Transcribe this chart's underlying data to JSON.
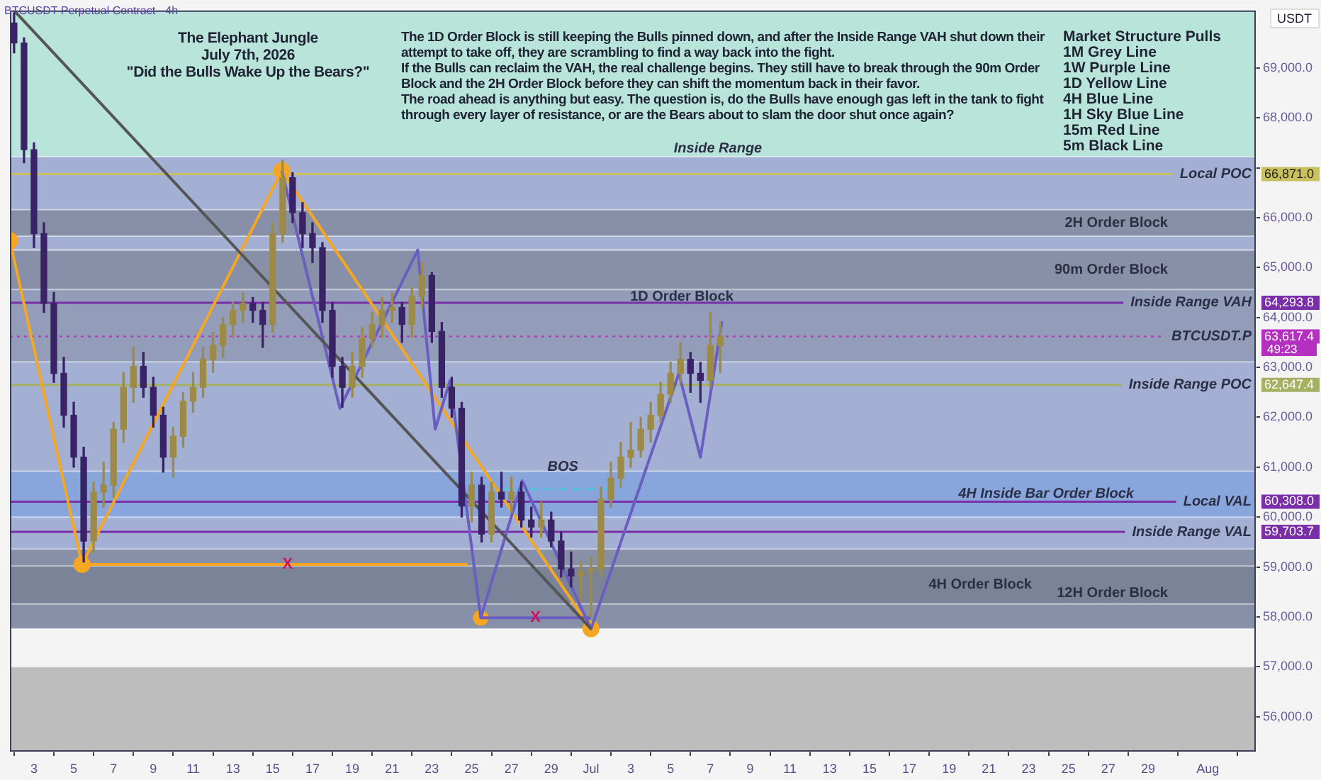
{
  "chart_data": {
    "type": "candlestick",
    "title": "The Elephant Jungle",
    "subtitle": "July 7th, 2026",
    "annotations": [
      "BTCUSDT Perpetual Contract · 4h",
      "\"Did the Bulls Wake Up the Bears?\"",
      "The 1D Order Block is still keeping the Bulls pinned down, and after the Inside Range VAH shut down their attempt to take off, they are scrambling to find a way back into the fight.",
      "If the Bulls can reclaim the VAH, the real challenge begins. They still have to break through the 90m Order Block and the 2H Order Block before they can shift the momentum back in their favor.",
      "The road ahead is anything but easy. The question is, do the Bulls have enough gas left in the tank to fight through every layer of resistance, or are the Bears about to slam the door shut once again?",
      "Market Structure Pulls",
      "1M Grey Line",
      "1W Purple Line",
      "1D Yellow Line",
      "4H Blue Line",
      "1H Sky Blue Line",
      "15m Red Line",
      "5m Black Line",
      "USDT",
      "49:23",
      {
        "text": "BOS",
        "x": "2026-06-29T14:00",
        "y": 61010
      },
      {
        "text": "X",
        "x": "2026-06-15T18:00",
        "y": 59050
      },
      {
        "text": "X",
        "x": "2026-06-28T05:00",
        "y": 57980
      },
      "66,871.0",
      "64,293.8",
      "63,617.4",
      "62,647.4",
      "60,308.0",
      "59,703.7"
    ],
    "x": [
      "2026-06-02T00:00",
      "2026-06-02T12:00",
      "2026-06-03T00:00",
      "2026-06-03T12:00",
      "2026-06-04T00:00",
      "2026-06-04T12:00",
      "2026-06-05T00:00",
      "2026-06-05T12:00",
      "2026-06-06T00:00",
      "2026-06-06T12:00",
      "2026-06-07T00:00",
      "2026-06-07T12:00",
      "2026-06-08T00:00",
      "2026-06-08T12:00",
      "2026-06-09T00:00",
      "2026-06-09T12:00",
      "2026-06-10T00:00",
      "2026-06-10T12:00",
      "2026-06-11T00:00",
      "2026-06-11T12:00",
      "2026-06-12T00:00",
      "2026-06-12T12:00",
      "2026-06-13T00:00",
      "2026-06-13T12:00",
      "2026-06-14T00:00",
      "2026-06-14T12:00",
      "2026-06-15T00:00",
      "2026-06-15T12:00",
      "2026-06-16T00:00",
      "2026-06-16T12:00",
      "2026-06-17T00:00",
      "2026-06-17T12:00",
      "2026-06-18T00:00",
      "2026-06-18T12:00",
      "2026-06-19T00:00",
      "2026-06-19T12:00",
      "2026-06-20T00:00",
      "2026-06-20T12:00",
      "2026-06-21T00:00",
      "2026-06-21T12:00",
      "2026-06-22T00:00",
      "2026-06-22T12:00",
      "2026-06-23T00:00",
      "2026-06-23T12:00",
      "2026-06-24T00:00",
      "2026-06-24T12:00",
      "2026-06-25T00:00",
      "2026-06-25T12:00",
      "2026-06-26T00:00",
      "2026-06-26T12:00",
      "2026-06-27T00:00",
      "2026-06-27T12:00",
      "2026-06-28T00:00",
      "2026-06-28T12:00",
      "2026-06-29T00:00",
      "2026-06-29T12:00",
      "2026-06-30T00:00",
      "2026-06-30T12:00",
      "2026-07-01T00:00",
      "2026-07-01T12:00",
      "2026-07-02T00:00",
      "2026-07-02T12:00",
      "2026-07-03T00:00",
      "2026-07-03T12:00",
      "2026-07-04T00:00",
      "2026-07-04T12:00",
      "2026-07-05T00:00",
      "2026-07-05T12:00",
      "2026-07-06T00:00",
      "2026-07-06T12:00",
      "2026-07-07T00:00",
      "2026-07-07T12:00"
    ],
    "ohlc": [
      [
        69900,
        70100,
        69300,
        69500
      ],
      [
        69500,
        69600,
        67100,
        67360
      ],
      [
        67360,
        67500,
        65400,
        65680
      ],
      [
        65680,
        65900,
        64100,
        64280
      ],
      [
        64280,
        64500,
        62700,
        62880
      ],
      [
        62880,
        63200,
        61800,
        62040
      ],
      [
        62040,
        62300,
        61000,
        61200
      ],
      [
        61200,
        61400,
        59100,
        59520
      ],
      [
        59520,
        60700,
        59300,
        60500
      ],
      [
        60500,
        61100,
        60200,
        60640
      ],
      [
        60640,
        61900,
        60400,
        61760
      ],
      [
        61760,
        62900,
        61500,
        62600
      ],
      [
        62600,
        63400,
        62300,
        63020
      ],
      [
        63020,
        63300,
        62400,
        62600
      ],
      [
        62600,
        62800,
        61800,
        62040
      ],
      [
        62040,
        62200,
        60900,
        61200
      ],
      [
        61200,
        61800,
        60800,
        61620
      ],
      [
        61620,
        62500,
        61400,
        62320
      ],
      [
        62320,
        62900,
        62100,
        62600
      ],
      [
        62600,
        63400,
        62400,
        63160
      ],
      [
        63160,
        63700,
        62900,
        63440
      ],
      [
        63440,
        64000,
        63200,
        63860
      ],
      [
        63860,
        64300,
        63600,
        64140
      ],
      [
        64140,
        64500,
        63900,
        64280
      ],
      [
        64280,
        64400,
        63900,
        64140
      ],
      [
        64140,
        64300,
        63400,
        63860
      ],
      [
        63860,
        65900,
        63700,
        65680
      ],
      [
        65680,
        67150,
        65500,
        66800
      ],
      [
        66800,
        66900,
        65900,
        66100
      ],
      [
        66100,
        66300,
        65400,
        65680
      ],
      [
        65680,
        65900,
        65100,
        65400
      ],
      [
        65400,
        65500,
        63900,
        64140
      ],
      [
        64140,
        64300,
        62800,
        63020
      ],
      [
        63020,
        63200,
        62200,
        62600
      ],
      [
        62600,
        63300,
        62400,
        63020
      ],
      [
        63020,
        63800,
        62800,
        63580
      ],
      [
        63580,
        64100,
        63400,
        63860
      ],
      [
        63860,
        64400,
        63600,
        64140
      ],
      [
        64140,
        64500,
        63900,
        64200
      ],
      [
        64200,
        64300,
        63500,
        63860
      ],
      [
        63860,
        64600,
        63600,
        64420
      ],
      [
        64420,
        65100,
        64200,
        64840
      ],
      [
        64840,
        64900,
        63500,
        63720
      ],
      [
        63720,
        63900,
        62400,
        62600
      ],
      [
        62600,
        62800,
        62000,
        62180
      ],
      [
        62180,
        62300,
        60000,
        60220
      ],
      [
        60220,
        60900,
        59900,
        60640
      ],
      [
        60640,
        60800,
        59500,
        59660
      ],
      [
        59660,
        60700,
        59500,
        60500
      ],
      [
        60500,
        60900,
        60200,
        60360
      ],
      [
        60360,
        60800,
        60100,
        60500
      ],
      [
        60500,
        60700,
        59800,
        59940
      ],
      [
        59940,
        60200,
        59600,
        59800
      ],
      [
        59800,
        60300,
        59600,
        59940
      ],
      [
        59940,
        60100,
        59400,
        59520
      ],
      [
        59520,
        59700,
        58800,
        58960
      ],
      [
        58960,
        59300,
        58600,
        58820
      ],
      [
        58820,
        59100,
        58300,
        58900
      ],
      [
        58900,
        59200,
        58000,
        58960
      ],
      [
        58960,
        60600,
        58800,
        60360
      ],
      [
        60360,
        61100,
        60200,
        60780
      ],
      [
        60780,
        61500,
        60600,
        61200
      ],
      [
        61200,
        61900,
        61000,
        61340
      ],
      [
        61340,
        62000,
        61200,
        61760
      ],
      [
        61760,
        62300,
        61500,
        62040
      ],
      [
        62040,
        62700,
        61900,
        62460
      ],
      [
        62460,
        63100,
        62300,
        62880
      ],
      [
        62880,
        63500,
        62700,
        63160
      ],
      [
        63160,
        63300,
        62500,
        62880
      ],
      [
        62880,
        63100,
        62300,
        62740
      ],
      [
        62740,
        64100,
        62600,
        63440
      ],
      [
        63440,
        63900,
        62900,
        63617.4
      ]
    ],
    "colors": [
      "#3a2266",
      "#3a2266",
      "#3a2266",
      "#3a2266",
      "#3a2266",
      "#3a2266",
      "#3a2266",
      "#3a2266",
      "#9c8a48",
      "#9c8a48",
      "#9c8a48",
      "#9c8a48",
      "#9c8a48",
      "#3a2266",
      "#3a2266",
      "#3a2266",
      "#9c8a48",
      "#9c8a48",
      "#9c8a48",
      "#9c8a48",
      "#9c8a48",
      "#9c8a48",
      "#9c8a48",
      "#9c8a48",
      "#3a2266",
      "#3a2266",
      "#9c8a48",
      "#9c8a48",
      "#3a2266",
      "#3a2266",
      "#3a2266",
      "#3a2266",
      "#3a2266",
      "#3a2266",
      "#9c8a48",
      "#9c8a48",
      "#9c8a48",
      "#9c8a48",
      "#9c8a48",
      "#3a2266",
      "#9c8a48",
      "#9c8a48",
      "#3a2266",
      "#3a2266",
      "#3a2266",
      "#3a2266",
      "#9c8a48",
      "#3a2266",
      "#9c8a48",
      "#3a2266",
      "#9c8a48",
      "#3a2266",
      "#3a2266",
      "#9c8a48",
      "#3a2266",
      "#3a2266",
      "#3a2266",
      "#9c8a48",
      "#9c8a48",
      "#9c8a48",
      "#9c8a48",
      "#9c8a48",
      "#9c8a48",
      "#9c8a48",
      "#9c8a48",
      "#9c8a48",
      "#9c8a48",
      "#9c8a48",
      "#3a2266",
      "#3a2266",
      "#9c8a48",
      "#9c8a48"
    ],
    "series": [
      {
        "type": "line",
        "color": "#555555",
        "x": [
          "2026-06-02T00:00",
          "2026-07-01T00:00"
        ],
        "values": [
          70150,
          57760
        ]
      },
      {
        "type": "line",
        "color": "#f5a623",
        "x": [
          "2026-06-05T10:00",
          "2026-06-24T19:00"
        ],
        "values": [
          59050,
          59050
        ]
      },
      {
        "type": "line",
        "color": "#6a5fc1",
        "x": [
          "2026-06-15T11:00",
          "2026-06-18T09:00",
          "2026-06-22T07:00",
          "2026-06-23T04:00",
          "2026-06-23T22:00",
          "2026-06-25T11:00",
          "2026-06-27T13:00",
          "2026-07-01T00:00",
          "2026-07-05T10:00",
          "2026-07-06T12:00",
          "2026-07-07T14:00"
        ],
        "values": [
          66940,
          62180,
          65350,
          61760,
          62740,
          57980,
          60730,
          57760,
          62880,
          61200,
          63920
        ]
      },
      {
        "type": "line",
        "color": "#6a5fc1",
        "x": [
          "2026-06-25T11:00",
          "2026-07-01T00:00"
        ],
        "values": [
          57980,
          57980
        ]
      },
      {
        "type": "line",
        "color": "#4fc3d9",
        "line_style": "dashed",
        "x": [
          "2026-06-26T12:00",
          "2026-07-01T20:00"
        ],
        "values": [
          60560,
          60560
        ]
      },
      {
        "type": "line",
        "color": "#f5a623",
        "marker": "circle",
        "x": [
          "2026-06-01T19:00",
          "2026-06-05T10:00",
          "2026-06-15T11:00",
          "2026-07-01T00:00"
        ],
        "values": [
          65540,
          59050,
          66940,
          57760
        ]
      },
      {
        "type": "scatter",
        "color": "#f5a623",
        "marker": "circle",
        "x": [
          "2026-06-25T11:00"
        ],
        "values": [
          57980
        ]
      }
    ],
    "bands": [
      {
        "axis": "y",
        "from": 57760,
        "to": 70150,
        "color": "#b8e4d9"
      },
      {
        "axis": "y",
        "from": 55300,
        "to": 57000,
        "color": "#bdbdbd"
      },
      {
        "axis": "y",
        "from": 57760,
        "to": 67220,
        "label": "Inside Range",
        "color": "#a3b0d4"
      },
      {
        "axis": "y",
        "from": 65630,
        "to": 66160,
        "label": "2H Order Block",
        "color": "#8890a8"
      },
      {
        "axis": "y",
        "from": 63110,
        "to": 65350,
        "label": "1D Order Block",
        "color": "#939cb8"
      },
      {
        "axis": "y",
        "from": 64560,
        "to": 65350,
        "label": "90m Order Block",
        "color": "#8890a8"
      },
      {
        "axis": "y",
        "from": 60000,
        "to": 60920,
        "label": "4H Inside Bar Order Block",
        "color": "#88a6dc"
      },
      {
        "axis": "y",
        "from": 57760,
        "to": 59360,
        "label": "12H Order Block",
        "color": "#8890a8"
      },
      {
        "axis": "y",
        "from": 58260,
        "to": 59020,
        "label": "4H Order Block",
        "color": "#7b8398"
      }
    ],
    "ref_lines": [
      {
        "axis": "y",
        "value": 66871.0,
        "label": "Local POC",
        "color": "#c9c060"
      },
      {
        "axis": "y",
        "value": 64293.8,
        "label": "Inside Range VAH",
        "color": "#7a2fa8"
      },
      {
        "axis": "y",
        "value": 63617.4,
        "label": "BTCUSDT.P",
        "color": "#b52fc0",
        "line_style": "dotted"
      },
      {
        "axis": "y",
        "value": 62647.4,
        "label": "Inside Range POC",
        "color": "#a6b060"
      },
      {
        "axis": "y",
        "value": 60308.0,
        "label": "Local VAL",
        "color": "#7a2fa8"
      },
      {
        "axis": "y",
        "value": 59703.7,
        "label": "Inside Range VAL",
        "color": "#7a2fa8"
      }
    ],
    "xlim": [
      "2026-06-01T19:00",
      "2026-08-03T10:00"
    ],
    "xticks": [
      {
        "value": "2026-06-03",
        "label": "3"
      },
      {
        "value": "2026-06-05",
        "label": "5"
      },
      {
        "value": "2026-06-07",
        "label": "7"
      },
      {
        "value": "2026-06-09",
        "label": "9"
      },
      {
        "value": "2026-06-11",
        "label": "11"
      },
      {
        "value": "2026-06-13",
        "label": "13"
      },
      {
        "value": "2026-06-15",
        "label": "15"
      },
      {
        "value": "2026-06-17",
        "label": "17"
      },
      {
        "value": "2026-06-19",
        "label": "19"
      },
      {
        "value": "2026-06-21",
        "label": "21"
      },
      {
        "value": "2026-06-23",
        "label": "23"
      },
      {
        "value": "2026-06-25",
        "label": "25"
      },
      {
        "value": "2026-06-27",
        "label": "27"
      },
      {
        "value": "2026-06-29",
        "label": "29"
      },
      {
        "value": "2026-07-01",
        "label": "Jul"
      },
      {
        "value": "2026-07-03",
        "label": "3"
      },
      {
        "value": "2026-07-05",
        "label": "5"
      },
      {
        "value": "2026-07-07",
        "label": "7"
      },
      {
        "value": "2026-07-09",
        "label": "9"
      },
      {
        "value": "2026-07-11",
        "label": "11"
      },
      {
        "value": "2026-07-13",
        "label": "13"
      },
      {
        "value": "2026-07-15",
        "label": "15"
      },
      {
        "value": "2026-07-17",
        "label": "17"
      },
      {
        "value": "2026-07-19",
        "label": "19"
      },
      {
        "value": "2026-07-21",
        "label": "21"
      },
      {
        "value": "2026-07-23",
        "label": "23"
      },
      {
        "value": "2026-07-25",
        "label": "25"
      },
      {
        "value": "2026-07-27",
        "label": "27"
      },
      {
        "value": "2026-07-29",
        "label": "29"
      },
      {
        "value": "2026-08-01",
        "label": "Aug"
      }
    ],
    "ylim": [
      55300,
      70150
    ],
    "yticks": [
      {
        "value": 56000,
        "label": "56,000.0"
      },
      {
        "value": 57000,
        "label": "57,000.0"
      },
      {
        "value": 58000,
        "label": "58,000.0"
      },
      {
        "value": 59000,
        "label": "59,000.0"
      },
      {
        "value": 60000,
        "label": "60,000.0"
      },
      {
        "value": 61000,
        "label": "61,000.0"
      },
      {
        "value": 62000,
        "label": "62,000.0"
      },
      {
        "value": 63000,
        "label": "63,000.0"
      },
      {
        "value": 64000,
        "label": "64,000.0"
      },
      {
        "value": 65000,
        "label": "65,000.0"
      },
      {
        "value": 66000,
        "label": "66,000.0"
      },
      {
        "value": 67000,
        "label": null
      },
      {
        "value": 68000,
        "label": "68,000.0"
      },
      {
        "value": 69000,
        "label": "69,000.0"
      }
    ]
  }
}
